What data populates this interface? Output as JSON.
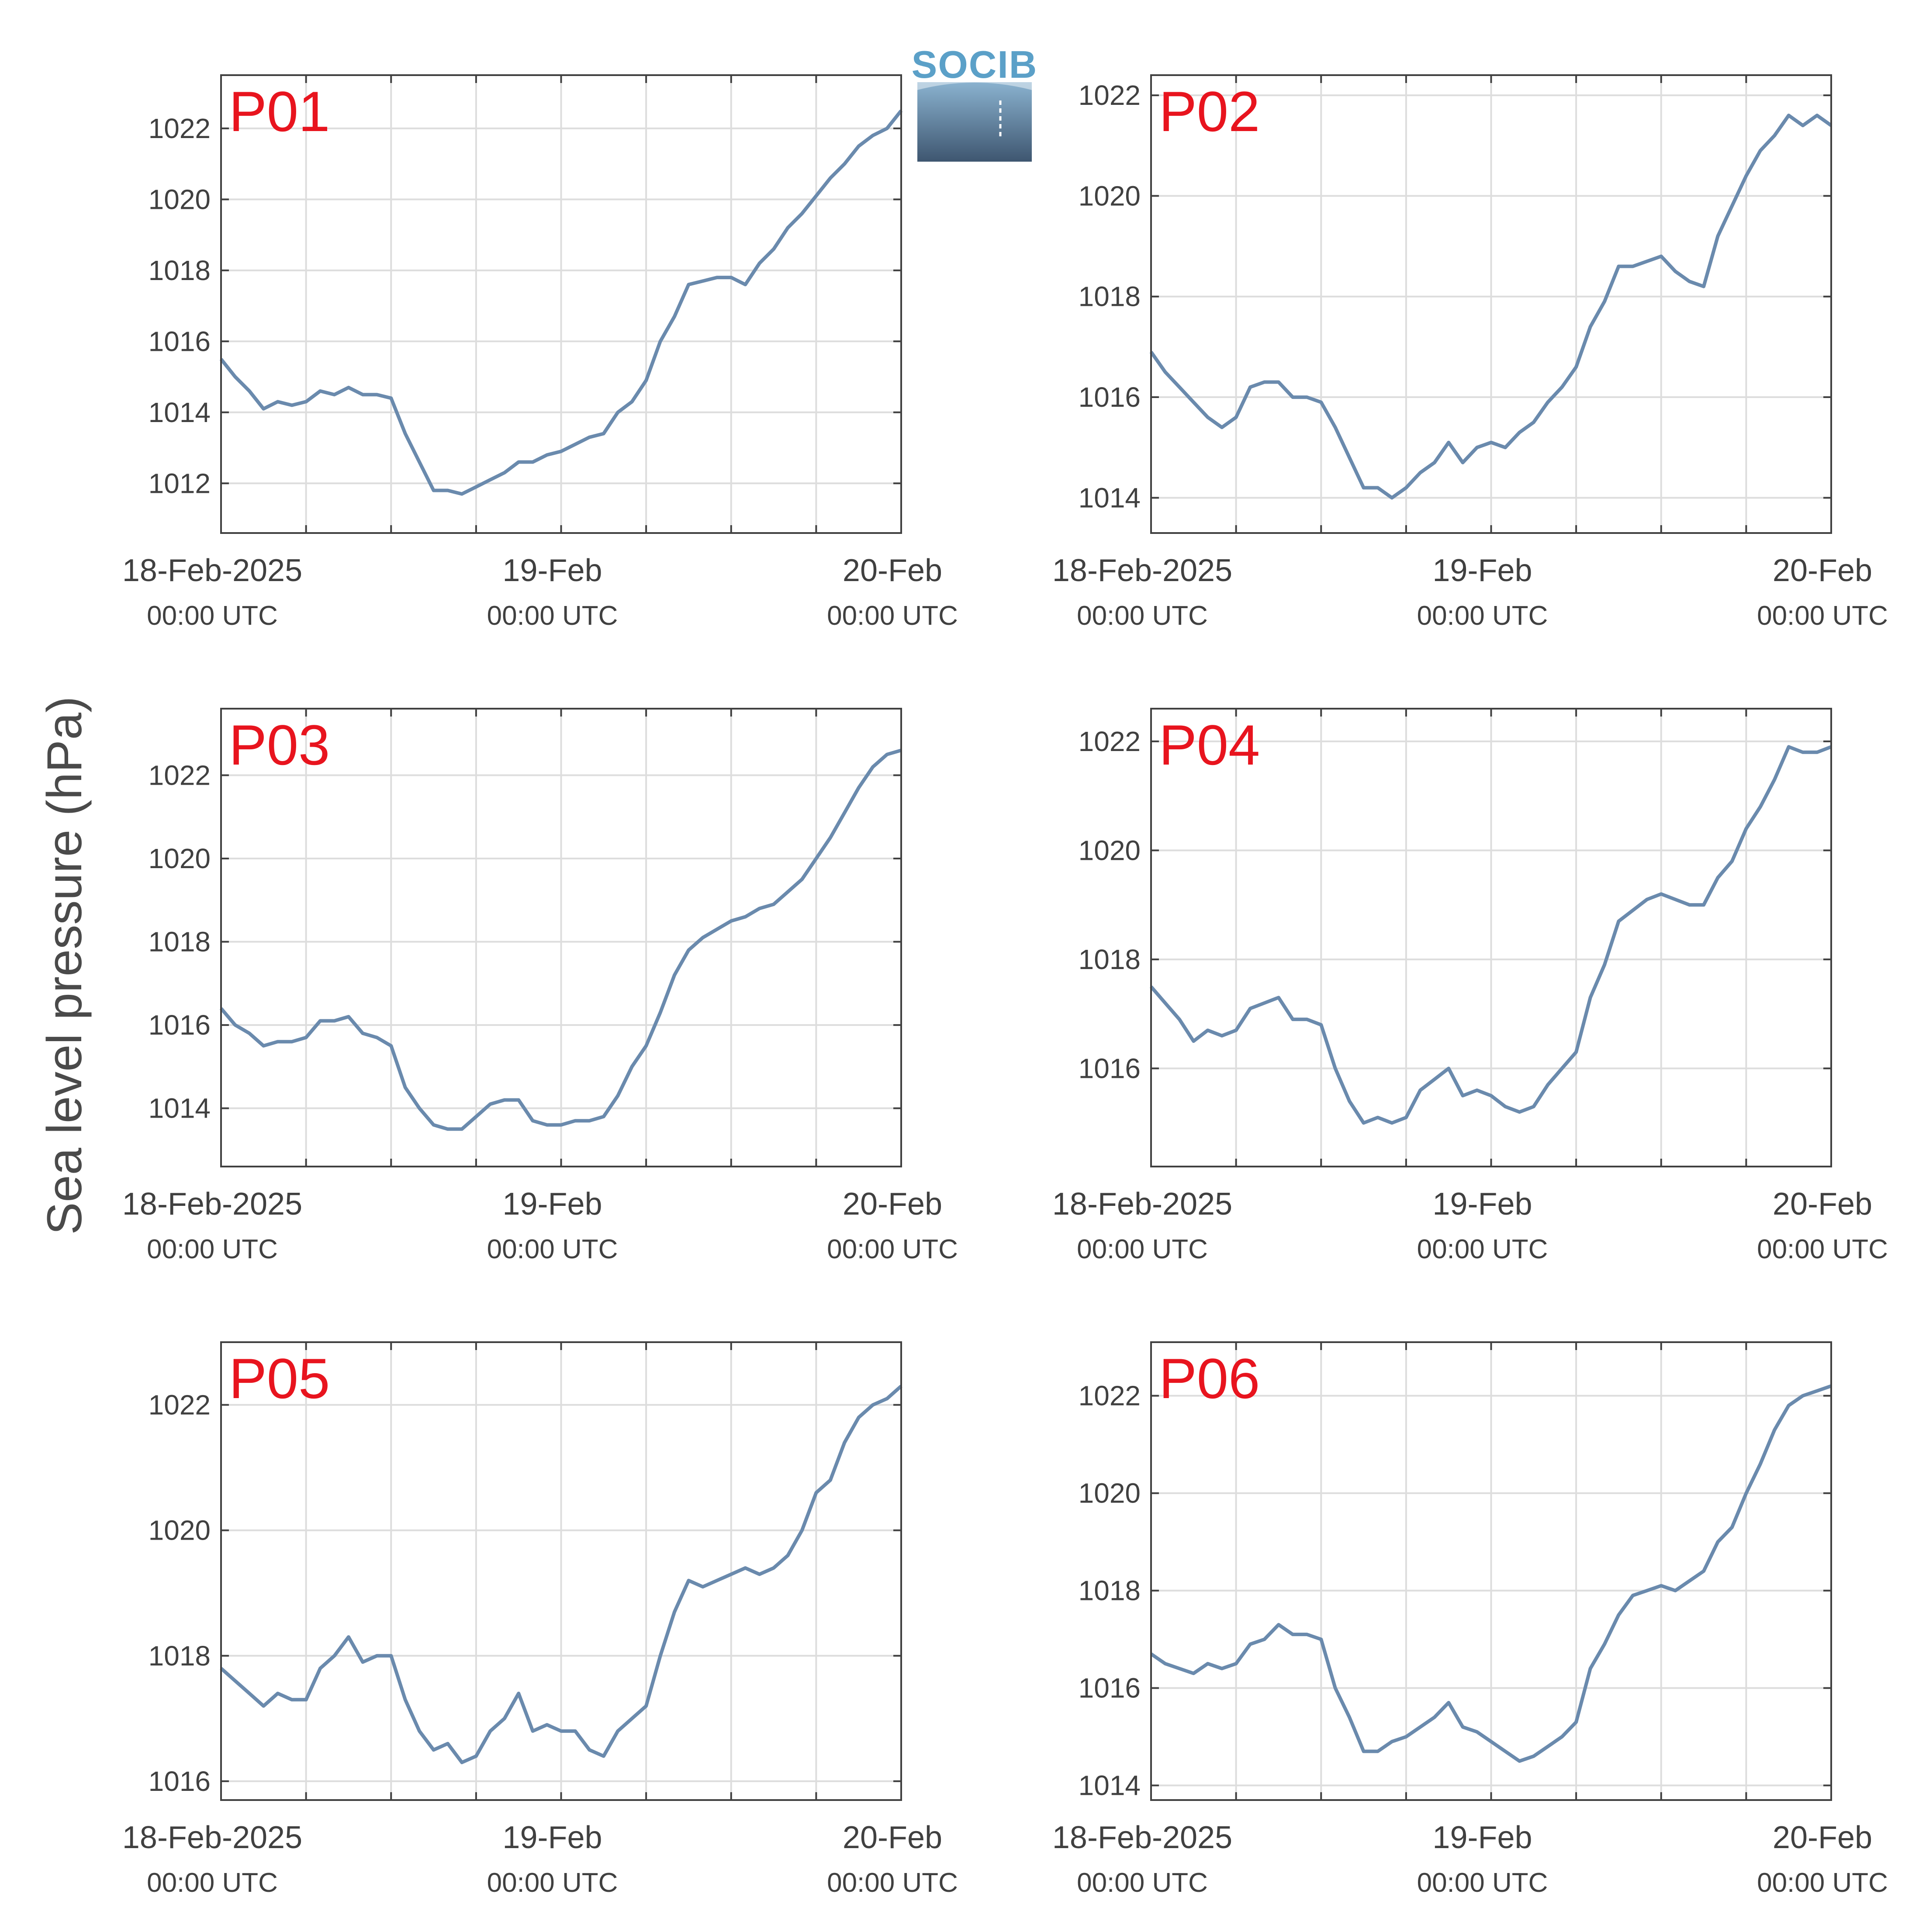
{
  "figure": {
    "ylabel": "Sea level pressure (hPa)",
    "logo_text": "SOCIB"
  },
  "colors": {
    "line": "#6a8aad",
    "label": "#e8141e",
    "grid": "#dddddd",
    "axis": "#404040"
  },
  "chart_data": [
    {
      "type": "line",
      "label": "P01",
      "xlim": [
        0,
        48
      ],
      "ylim": [
        1010.6,
        1023.5
      ],
      "yticks": [
        1012,
        1014,
        1016,
        1018,
        1020,
        1022
      ],
      "x_tick_labels": [
        {
          "x": 0,
          "date": "18-Feb-2025",
          "time": "00:00 UTC"
        },
        {
          "x": 24,
          "date": "19-Feb",
          "time": "00:00 UTC"
        },
        {
          "x": 48,
          "date": "20-Feb",
          "time": "00:00 UTC"
        }
      ],
      "x": [
        0,
        1,
        2,
        3,
        4,
        5,
        6,
        7,
        8,
        9,
        10,
        11,
        12,
        13,
        14,
        15,
        16,
        17,
        18,
        19,
        20,
        21,
        22,
        23,
        24,
        25,
        26,
        27,
        28,
        29,
        30,
        31,
        32,
        33,
        34,
        35,
        36,
        37,
        38,
        39,
        40,
        41,
        42,
        43,
        44,
        45,
        46,
        47,
        48
      ],
      "values": [
        1015.5,
        1015.0,
        1014.6,
        1014.1,
        1014.3,
        1014.2,
        1014.3,
        1014.6,
        1014.5,
        1014.7,
        1014.5,
        1014.5,
        1014.4,
        1013.4,
        1012.6,
        1011.8,
        1011.8,
        1011.7,
        1011.9,
        1012.1,
        1012.3,
        1012.6,
        1012.6,
        1012.8,
        1012.9,
        1013.1,
        1013.3,
        1013.4,
        1014.0,
        1014.3,
        1014.9,
        1016.0,
        1016.7,
        1017.6,
        1017.7,
        1017.8,
        1017.8,
        1017.6,
        1018.2,
        1018.6,
        1019.2,
        1019.6,
        1020.1,
        1020.6,
        1021.0,
        1021.5,
        1021.8,
        1022.0,
        1022.5
      ]
    },
    {
      "type": "line",
      "label": "P02",
      "xlim": [
        0,
        48
      ],
      "ylim": [
        1013.3,
        1022.4
      ],
      "yticks": [
        1014,
        1016,
        1018,
        1020,
        1022
      ],
      "x_tick_labels": [
        {
          "x": 0,
          "date": "18-Feb-2025",
          "time": "00:00 UTC"
        },
        {
          "x": 24,
          "date": "19-Feb",
          "time": "00:00 UTC"
        },
        {
          "x": 48,
          "date": "20-Feb",
          "time": "00:00 UTC"
        }
      ],
      "x": [
        0,
        1,
        2,
        3,
        4,
        5,
        6,
        7,
        8,
        9,
        10,
        11,
        12,
        13,
        14,
        15,
        16,
        17,
        18,
        19,
        20,
        21,
        22,
        23,
        24,
        25,
        26,
        27,
        28,
        29,
        30,
        31,
        32,
        33,
        34,
        35,
        36,
        37,
        38,
        39,
        40,
        41,
        42,
        43,
        44,
        45,
        46,
        47,
        48
      ],
      "values": [
        1016.9,
        1016.5,
        1016.2,
        1015.9,
        1015.6,
        1015.4,
        1015.6,
        1016.2,
        1016.3,
        1016.3,
        1016.0,
        1016.0,
        1015.9,
        1015.4,
        1014.8,
        1014.2,
        1014.2,
        1014.0,
        1014.2,
        1014.5,
        1014.7,
        1015.1,
        1014.7,
        1015.0,
        1015.1,
        1015.0,
        1015.3,
        1015.5,
        1015.9,
        1016.2,
        1016.6,
        1017.4,
        1017.9,
        1018.6,
        1018.6,
        1018.7,
        1018.8,
        1018.5,
        1018.3,
        1018.2,
        1019.2,
        1019.8,
        1020.4,
        1020.9,
        1021.2,
        1021.6,
        1021.4,
        1021.6,
        1021.4
      ]
    },
    {
      "type": "line",
      "label": "P03",
      "xlim": [
        0,
        48
      ],
      "ylim": [
        1012.6,
        1023.6
      ],
      "yticks": [
        1014,
        1016,
        1018,
        1020,
        1022
      ],
      "x_tick_labels": [
        {
          "x": 0,
          "date": "18-Feb-2025",
          "time": "00:00 UTC"
        },
        {
          "x": 24,
          "date": "19-Feb",
          "time": "00:00 UTC"
        },
        {
          "x": 48,
          "date": "20-Feb",
          "time": "00:00 UTC"
        }
      ],
      "x": [
        0,
        1,
        2,
        3,
        4,
        5,
        6,
        7,
        8,
        9,
        10,
        11,
        12,
        13,
        14,
        15,
        16,
        17,
        18,
        19,
        20,
        21,
        22,
        23,
        24,
        25,
        26,
        27,
        28,
        29,
        30,
        31,
        32,
        33,
        34,
        35,
        36,
        37,
        38,
        39,
        40,
        41,
        42,
        43,
        44,
        45,
        46,
        47,
        48
      ],
      "values": [
        1016.4,
        1016.0,
        1015.8,
        1015.5,
        1015.6,
        1015.6,
        1015.7,
        1016.1,
        1016.1,
        1016.2,
        1015.8,
        1015.7,
        1015.5,
        1014.5,
        1014.0,
        1013.6,
        1013.5,
        1013.5,
        1013.8,
        1014.1,
        1014.2,
        1014.2,
        1013.7,
        1013.6,
        1013.6,
        1013.7,
        1013.7,
        1013.8,
        1014.3,
        1015.0,
        1015.5,
        1016.3,
        1017.2,
        1017.8,
        1018.1,
        1018.3,
        1018.5,
        1018.6,
        1018.8,
        1018.9,
        1019.2,
        1019.5,
        1020.0,
        1020.5,
        1021.1,
        1021.7,
        1022.2,
        1022.5,
        1022.6
      ]
    },
    {
      "type": "line",
      "label": "P04",
      "xlim": [
        0,
        48
      ],
      "ylim": [
        1014.2,
        1022.6
      ],
      "yticks": [
        1016,
        1018,
        1020,
        1022
      ],
      "x_tick_labels": [
        {
          "x": 0,
          "date": "18-Feb-2025",
          "time": "00:00 UTC"
        },
        {
          "x": 24,
          "date": "19-Feb",
          "time": "00:00 UTC"
        },
        {
          "x": 48,
          "date": "20-Feb",
          "time": "00:00 UTC"
        }
      ],
      "x": [
        0,
        1,
        2,
        3,
        4,
        5,
        6,
        7,
        8,
        9,
        10,
        11,
        12,
        13,
        14,
        15,
        16,
        17,
        18,
        19,
        20,
        21,
        22,
        23,
        24,
        25,
        26,
        27,
        28,
        29,
        30,
        31,
        32,
        33,
        34,
        35,
        36,
        37,
        38,
        39,
        40,
        41,
        42,
        43,
        44,
        45,
        46,
        47,
        48
      ],
      "values": [
        1017.5,
        1017.2,
        1016.9,
        1016.5,
        1016.7,
        1016.6,
        1016.7,
        1017.1,
        1017.2,
        1017.3,
        1016.9,
        1016.9,
        1016.8,
        1016.0,
        1015.4,
        1015.0,
        1015.1,
        1015.0,
        1015.1,
        1015.6,
        1015.8,
        1016.0,
        1015.5,
        1015.6,
        1015.5,
        1015.3,
        1015.2,
        1015.3,
        1015.7,
        1016.0,
        1016.3,
        1017.3,
        1017.9,
        1018.7,
        1018.9,
        1019.1,
        1019.2,
        1019.1,
        1019.0,
        1019.0,
        1019.5,
        1019.8,
        1020.4,
        1020.8,
        1021.3,
        1021.9,
        1021.8,
        1021.8,
        1021.9
      ]
    },
    {
      "type": "line",
      "label": "P05",
      "xlim": [
        0,
        48
      ],
      "ylim": [
        1015.7,
        1023.0
      ],
      "yticks": [
        1016,
        1018,
        1020,
        1022
      ],
      "x_tick_labels": [
        {
          "x": 0,
          "date": "18-Feb-2025",
          "time": "00:00 UTC"
        },
        {
          "x": 24,
          "date": "19-Feb",
          "time": "00:00 UTC"
        },
        {
          "x": 48,
          "date": "20-Feb",
          "time": "00:00 UTC"
        }
      ],
      "x": [
        0,
        1,
        2,
        3,
        4,
        5,
        6,
        7,
        8,
        9,
        10,
        11,
        12,
        13,
        14,
        15,
        16,
        17,
        18,
        19,
        20,
        21,
        22,
        23,
        24,
        25,
        26,
        27,
        28,
        29,
        30,
        31,
        32,
        33,
        34,
        35,
        36,
        37,
        38,
        39,
        40,
        41,
        42,
        43,
        44,
        45,
        46,
        47,
        48
      ],
      "values": [
        1017.8,
        1017.6,
        1017.4,
        1017.2,
        1017.4,
        1017.3,
        1017.3,
        1017.8,
        1018.0,
        1018.3,
        1017.9,
        1018.0,
        1018.0,
        1017.3,
        1016.8,
        1016.5,
        1016.6,
        1016.3,
        1016.4,
        1016.8,
        1017.0,
        1017.4,
        1016.8,
        1016.9,
        1016.8,
        1016.8,
        1016.5,
        1016.4,
        1016.8,
        1017.0,
        1017.2,
        1018.0,
        1018.7,
        1019.2,
        1019.1,
        1019.2,
        1019.3,
        1019.4,
        1019.3,
        1019.4,
        1019.6,
        1020.0,
        1020.6,
        1020.8,
        1021.4,
        1021.8,
        1022.0,
        1022.1,
        1022.3
      ]
    },
    {
      "type": "line",
      "label": "P06",
      "xlim": [
        0,
        48
      ],
      "ylim": [
        1013.7,
        1023.1
      ],
      "yticks": [
        1014,
        1016,
        1018,
        1020,
        1022
      ],
      "x_tick_labels": [
        {
          "x": 0,
          "date": "18-Feb-2025",
          "time": "00:00 UTC"
        },
        {
          "x": 24,
          "date": "19-Feb",
          "time": "00:00 UTC"
        },
        {
          "x": 48,
          "date": "20-Feb",
          "time": "00:00 UTC"
        }
      ],
      "x": [
        0,
        1,
        2,
        3,
        4,
        5,
        6,
        7,
        8,
        9,
        10,
        11,
        12,
        13,
        14,
        15,
        16,
        17,
        18,
        19,
        20,
        21,
        22,
        23,
        24,
        25,
        26,
        27,
        28,
        29,
        30,
        31,
        32,
        33,
        34,
        35,
        36,
        37,
        38,
        39,
        40,
        41,
        42,
        43,
        44,
        45,
        46,
        47,
        48
      ],
      "values": [
        1016.7,
        1016.5,
        1016.4,
        1016.3,
        1016.5,
        1016.4,
        1016.5,
        1016.9,
        1017.0,
        1017.3,
        1017.1,
        1017.1,
        1017.0,
        1016.0,
        1015.4,
        1014.7,
        1014.7,
        1014.9,
        1015.0,
        1015.2,
        1015.4,
        1015.7,
        1015.2,
        1015.1,
        1014.9,
        1014.7,
        1014.5,
        1014.6,
        1014.8,
        1015.0,
        1015.3,
        1016.4,
        1016.9,
        1017.5,
        1017.9,
        1018.0,
        1018.1,
        1018.0,
        1018.2,
        1018.4,
        1019.0,
        1019.3,
        1020.0,
        1020.6,
        1021.3,
        1021.8,
        1022.0,
        1022.1,
        1022.2
      ]
    }
  ]
}
